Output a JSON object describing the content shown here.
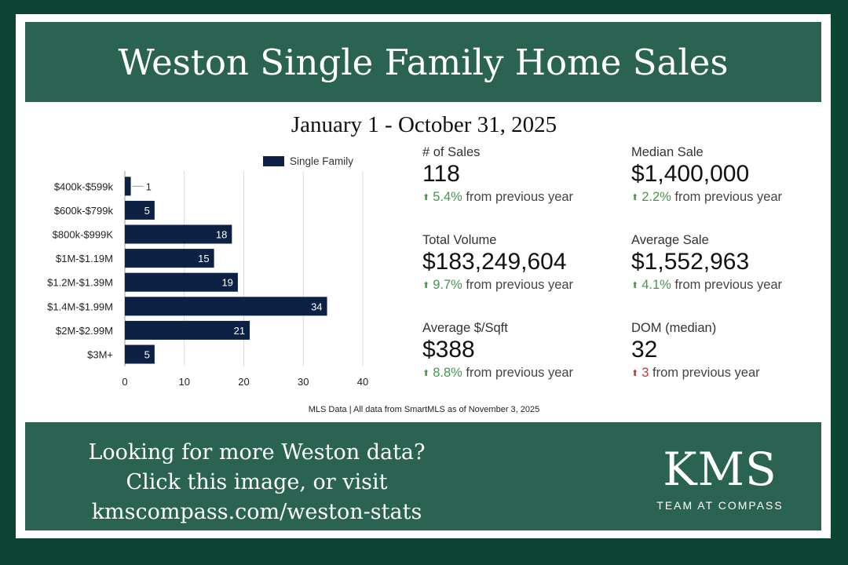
{
  "header": {
    "title": "Weston Single Family Home Sales"
  },
  "date_range": "January 1 - October 31, 2025",
  "chart_data": {
    "type": "bar",
    "orientation": "horizontal",
    "categories": [
      "$400k-$599k",
      "$600k-$799k",
      "$800k-$999K",
      "$1M-$1.19M",
      "$1.2M-$1.39M",
      "$1.4M-$1.99M",
      "$2M-$2.99M",
      "$3M+"
    ],
    "series": [
      {
        "name": "Single Family",
        "values": [
          1,
          5,
          18,
          15,
          19,
          34,
          21,
          5
        ]
      }
    ],
    "xlim": [
      0,
      40
    ],
    "xticks": [
      0,
      10,
      20,
      30,
      40
    ],
    "grid": true,
    "legend": "top",
    "color": "#0d2145"
  },
  "stats": [
    {
      "label": "# of Sales",
      "value": "118",
      "direction": "up",
      "pct": "5.4%",
      "suffix": "from previous year"
    },
    {
      "label": "Median Sale",
      "value": "$1,400,000",
      "direction": "up",
      "pct": "2.2%",
      "suffix": "from previous year"
    },
    {
      "label": "Total Volume",
      "value": "$183,249,604",
      "direction": "up",
      "pct": "9.7%",
      "suffix": "from previous year"
    },
    {
      "label": "Average Sale",
      "value": "$1,552,963",
      "direction": "up",
      "pct": "4.1%",
      "suffix": "from previous year"
    },
    {
      "label": "Average $/Sqft",
      "value": "$388",
      "direction": "up",
      "pct": "8.8%",
      "suffix": "from previous year"
    },
    {
      "label": "DOM (median)",
      "value": "32",
      "direction": "down",
      "pct": "3",
      "suffix": "from previous year"
    }
  ],
  "source_note": "MLS Data | All data from SmartMLS as of November 3, 2025",
  "footer": {
    "cta_lines": [
      "Looking for more Weston data?",
      "Click this image, or visit",
      "kmscompass.com/weston-stats"
    ],
    "logo_mark": "KMS",
    "logo_tag": "TEAM AT COMPASS"
  },
  "colors": {
    "background": "#0c4533",
    "banner": "#2a6352",
    "bar": "#0d2145",
    "up": "#3f9a4a",
    "down": "#c0392b"
  }
}
